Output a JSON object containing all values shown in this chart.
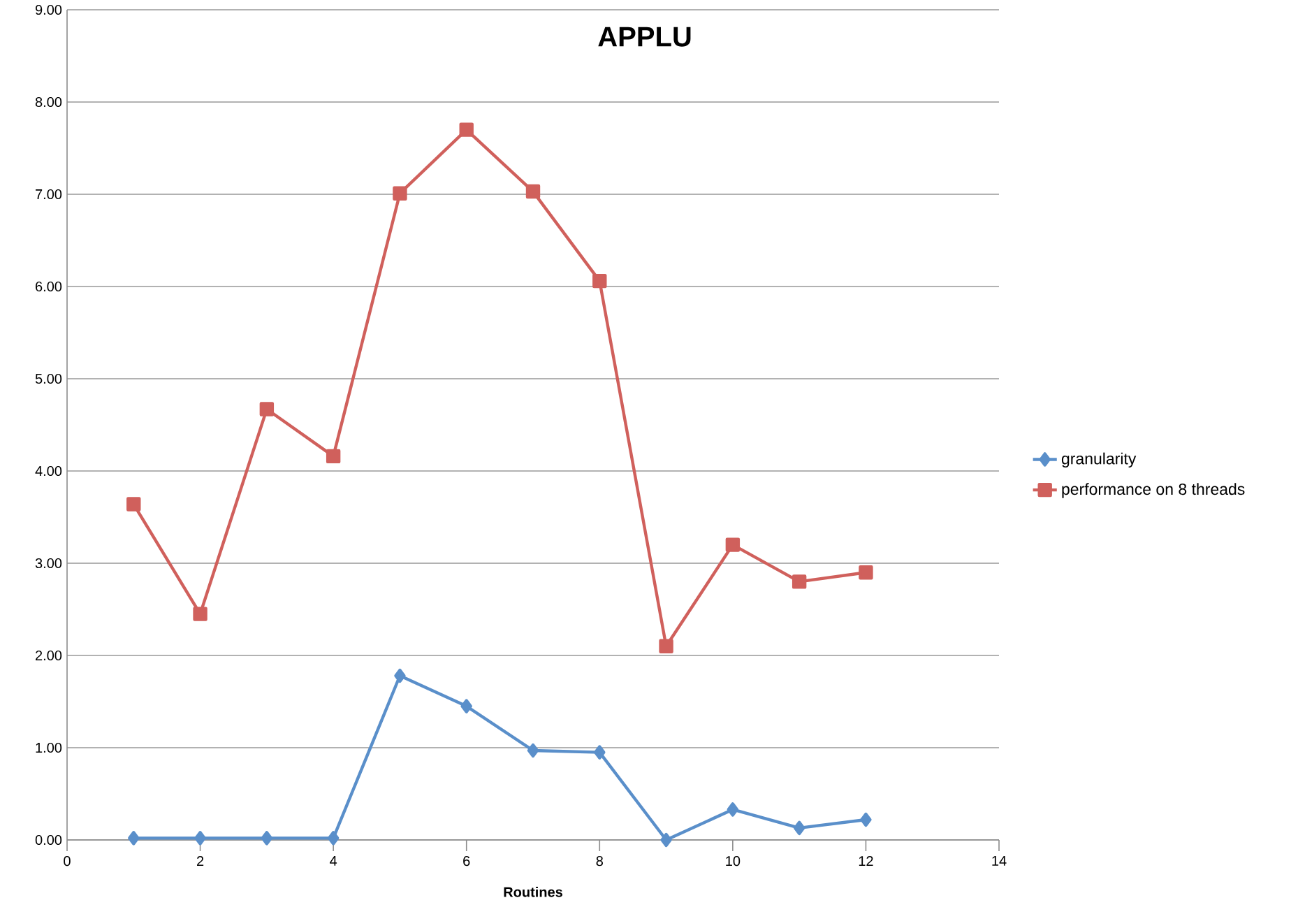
{
  "chart_data": {
    "type": "line",
    "title": "APPLU",
    "xlabel": "Routines",
    "x": [
      1,
      2,
      3,
      4,
      5,
      6,
      7,
      8,
      9,
      10,
      11,
      12
    ],
    "series": [
      {
        "name": "granularity",
        "color": "#5a8fca",
        "marker": "diamond",
        "values": [
          0.02,
          0.02,
          0.02,
          0.02,
          1.78,
          1.45,
          0.97,
          0.95,
          0.0,
          0.33,
          0.13,
          0.22
        ]
      },
      {
        "name": "performance on 8 threads",
        "color": "#d0605c",
        "marker": "square",
        "values": [
          3.64,
          2.45,
          4.67,
          4.16,
          7.01,
          7.7,
          7.03,
          6.06,
          2.1,
          3.2,
          2.8,
          2.9
        ]
      }
    ],
    "xlim": [
      0,
      14
    ],
    "xticks": [
      0,
      2,
      4,
      6,
      8,
      10,
      12,
      14
    ],
    "ylim": [
      0,
      9
    ],
    "yticks": [
      {
        "value": 0,
        "label": "0.00"
      },
      {
        "value": 1,
        "label": "1.00"
      },
      {
        "value": 2,
        "label": "2.00"
      },
      {
        "value": 3,
        "label": "3.00"
      },
      {
        "value": 4,
        "label": "4.00"
      },
      {
        "value": 5,
        "label": "5.00"
      },
      {
        "value": 6,
        "label": "6.00"
      },
      {
        "value": 7,
        "label": "7.00"
      },
      {
        "value": 8,
        "label": "8.00"
      },
      {
        "value": 9,
        "label": "9.00"
      }
    ],
    "grid": "y",
    "legend": "right"
  }
}
